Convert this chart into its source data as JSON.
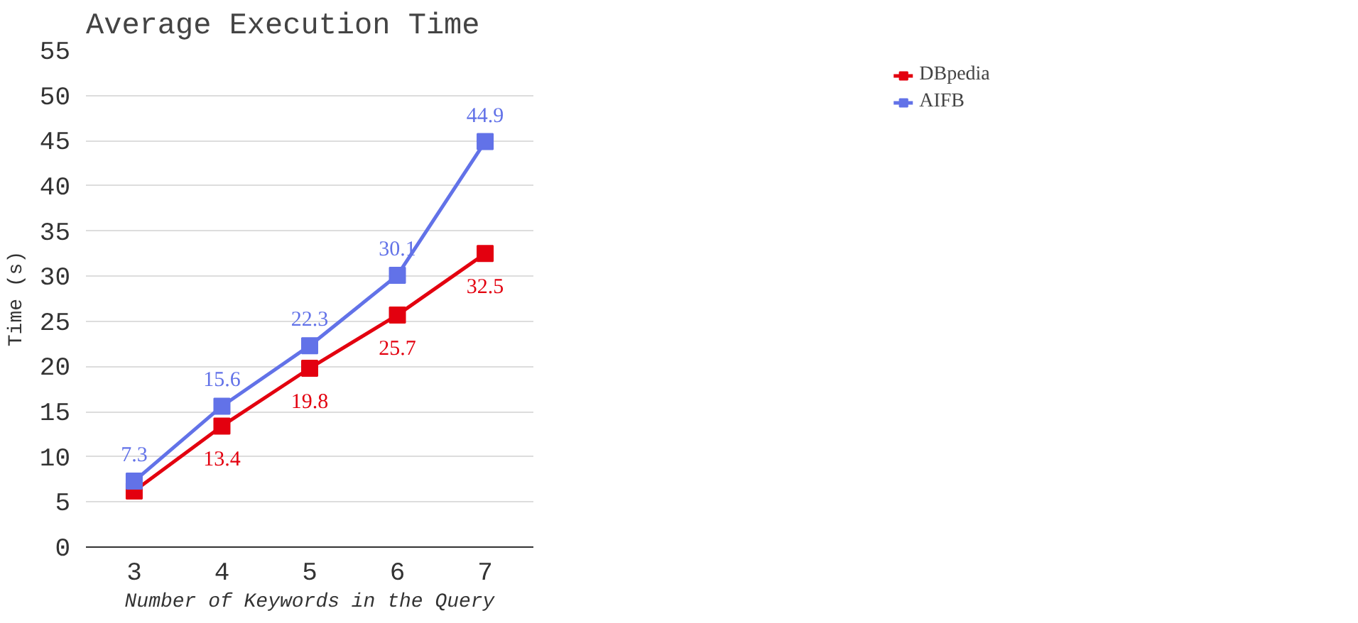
{
  "chart_data": {
    "type": "line",
    "title": "Average Execution Time",
    "xlabel": "Number of Keywords in the Query",
    "ylabel": "Time (s)",
    "categories": [
      "3",
      "4",
      "5",
      "6",
      "7"
    ],
    "series": [
      {
        "name": "DBpedia",
        "color": "#e3000f",
        "values": [
          6.2,
          13.4,
          19.8,
          25.7,
          32.5
        ],
        "value_labels": [
          null,
          "13.4",
          "19.8",
          "25.7",
          "32.5"
        ]
      },
      {
        "name": "AIFB",
        "color": "#6272e8",
        "values": [
          7.3,
          15.6,
          22.3,
          30.1,
          44.9
        ],
        "value_labels": [
          "7.3",
          "15.6",
          "22.3",
          "30.1",
          "44.9"
        ]
      }
    ],
    "ylim": [
      0,
      55
    ],
    "yticks": [
      0,
      5,
      10,
      15,
      20,
      25,
      30,
      35,
      40,
      45,
      50,
      55
    ],
    "grid": "y",
    "legend": "top right",
    "marker": "square",
    "line_style": "solid"
  }
}
